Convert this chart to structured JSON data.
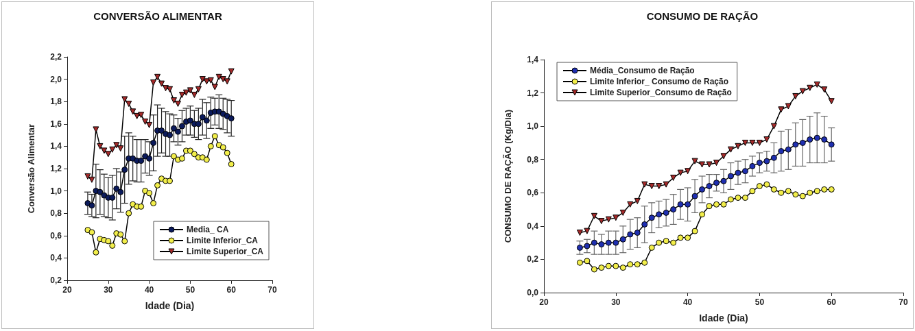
{
  "chart_data": [
    {
      "type": "line",
      "title": "CONVERSÃO ALIMENTAR",
      "xlabel": "Idade (Dia)",
      "ylabel": "Conversão Alimentar",
      "xlim": [
        20,
        70
      ],
      "xticks": [
        20,
        30,
        40,
        50,
        60,
        70
      ],
      "ylim": [
        0.2,
        2.2
      ],
      "yticks": [
        {
          "value": 0.2,
          "label": "0,2"
        },
        {
          "value": 0.4,
          "label": "0,4"
        },
        {
          "value": 0.6,
          "label": "0,6"
        },
        {
          "value": 0.8,
          "label": "0,8"
        },
        {
          "value": 1.0,
          "label": "1,0"
        },
        {
          "value": 1.2,
          "label": "1,2"
        },
        {
          "value": 1.4,
          "label": "1,4"
        },
        {
          "value": 1.6,
          "label": "1,6"
        },
        {
          "value": 1.8,
          "label": "1,8"
        },
        {
          "value": 2.0,
          "label": "2,0"
        },
        {
          "value": 2.2,
          "label": "2,2"
        }
      ],
      "grid": false,
      "legend": "bottom right",
      "x": [
        25,
        26,
        27,
        28,
        29,
        30,
        31,
        32,
        33,
        34,
        35,
        36,
        37,
        38,
        39,
        40,
        41,
        42,
        43,
        44,
        45,
        46,
        47,
        48,
        49,
        50,
        51,
        52,
        53,
        54,
        55,
        56,
        57,
        58,
        59,
        60
      ],
      "series": [
        {
          "name": "Media_ CA",
          "color": "#0b1a5c",
          "marker": "circle",
          "values": [
            0.89,
            0.87,
            1.0,
            0.99,
            0.96,
            0.94,
            0.94,
            1.02,
            0.99,
            1.19,
            1.29,
            1.29,
            1.27,
            1.27,
            1.31,
            1.29,
            1.43,
            1.54,
            1.54,
            1.51,
            1.5,
            1.56,
            1.53,
            1.58,
            1.62,
            1.63,
            1.6,
            1.6,
            1.66,
            1.63,
            1.7,
            1.71,
            1.71,
            1.69,
            1.67,
            1.65
          ],
          "errors": [
            0.1,
            0.1,
            0.24,
            0.2,
            0.19,
            0.18,
            0.2,
            0.18,
            0.18,
            0.3,
            0.23,
            0.2,
            0.19,
            0.19,
            0.15,
            0.15,
            0.25,
            0.23,
            0.2,
            0.2,
            0.19,
            0.12,
            0.12,
            0.14,
            0.12,
            0.13,
            0.12,
            0.14,
            0.16,
            0.16,
            0.14,
            0.12,
            0.15,
            0.14,
            0.15,
            0.16
          ]
        },
        {
          "name": "Limite Inferior_CA",
          "color": "#f2ee4a",
          "marker": "circle",
          "values": [
            0.65,
            0.63,
            0.45,
            0.57,
            0.56,
            0.55,
            0.51,
            0.62,
            0.61,
            0.55,
            0.8,
            0.88,
            0.86,
            0.86,
            1.0,
            0.98,
            0.89,
            1.05,
            1.11,
            1.09,
            1.09,
            1.31,
            1.28,
            1.29,
            1.36,
            1.36,
            1.33,
            1.3,
            1.3,
            1.28,
            1.4,
            1.49,
            1.41,
            1.39,
            1.34,
            1.24
          ]
        },
        {
          "name": "Limite Superior_CA",
          "color": "#a52a2a",
          "marker": "triangle",
          "values": [
            1.13,
            1.1,
            1.55,
            1.4,
            1.36,
            1.33,
            1.37,
            1.41,
            1.38,
            1.82,
            1.78,
            1.71,
            1.67,
            1.68,
            1.62,
            1.59,
            1.97,
            2.02,
            1.96,
            1.92,
            1.91,
            1.81,
            1.78,
            1.86,
            1.88,
            1.9,
            1.86,
            1.91,
            2.0,
            1.98,
            1.99,
            1.93,
            2.02,
            2.0,
            1.98,
            2.07
          ]
        }
      ]
    },
    {
      "type": "line",
      "title": "CONSUMO DE RAÇÃO",
      "xlabel": "Idade (Dia)",
      "ylabel": "CONSUMO DE RAÇÃO (Kg/Dia)",
      "xlim": [
        20,
        70
      ],
      "xticks": [
        20,
        30,
        40,
        50,
        60,
        70
      ],
      "ylim": [
        0,
        1.4
      ],
      "yticks": [
        {
          "value": 0,
          "label": "0,0"
        },
        {
          "value": 0.2,
          "label": "0,2"
        },
        {
          "value": 0.4,
          "label": "0,4"
        },
        {
          "value": 0.6,
          "label": "0,6"
        },
        {
          "value": 0.8,
          "label": "0,8"
        },
        {
          "value": 1.0,
          "label": "1,0"
        },
        {
          "value": 1.2,
          "label": "1,2"
        },
        {
          "value": 1.4,
          "label": "1,4"
        }
      ],
      "grid": false,
      "legend": "top left",
      "x": [
        25,
        26,
        27,
        28,
        29,
        30,
        31,
        32,
        33,
        34,
        35,
        36,
        37,
        38,
        39,
        40,
        41,
        42,
        43,
        44,
        45,
        46,
        47,
        48,
        49,
        50,
        51,
        52,
        53,
        54,
        55,
        56,
        57,
        58,
        59,
        60
      ],
      "series": [
        {
          "name": "Média_Consumo de Ração",
          "color": "#1f2fb0",
          "marker": "circle",
          "values": [
            0.27,
            0.28,
            0.3,
            0.29,
            0.3,
            0.3,
            0.32,
            0.35,
            0.36,
            0.41,
            0.45,
            0.47,
            0.48,
            0.5,
            0.53,
            0.53,
            0.58,
            0.62,
            0.64,
            0.66,
            0.67,
            0.7,
            0.72,
            0.73,
            0.76,
            0.78,
            0.79,
            0.81,
            0.85,
            0.86,
            0.89,
            0.9,
            0.92,
            0.93,
            0.92,
            0.89
          ],
          "errors": [
            0.04,
            0.04,
            0.07,
            0.06,
            0.07,
            0.07,
            0.08,
            0.09,
            0.09,
            0.11,
            0.09,
            0.08,
            0.08,
            0.09,
            0.09,
            0.1,
            0.1,
            0.08,
            0.07,
            0.05,
            0.07,
            0.08,
            0.07,
            0.07,
            0.06,
            0.06,
            0.06,
            0.09,
            0.12,
            0.12,
            0.13,
            0.14,
            0.14,
            0.15,
            0.14,
            0.1
          ]
        },
        {
          "name": "Limite Inferior_ Consumo de Ração",
          "color": "#f2ee4a",
          "marker": "circle",
          "values": [
            0.18,
            0.19,
            0.14,
            0.15,
            0.16,
            0.16,
            0.15,
            0.17,
            0.17,
            0.18,
            0.27,
            0.3,
            0.31,
            0.3,
            0.33,
            0.33,
            0.37,
            0.47,
            0.52,
            0.53,
            0.53,
            0.56,
            0.57,
            0.57,
            0.61,
            0.64,
            0.65,
            0.62,
            0.6,
            0.61,
            0.59,
            0.58,
            0.6,
            0.61,
            0.62,
            0.62
          ]
        },
        {
          "name": "Limite Superior_Consumo de Ração",
          "color": "#a52a2a",
          "marker": "triangle",
          "values": [
            0.36,
            0.37,
            0.46,
            0.43,
            0.44,
            0.45,
            0.48,
            0.53,
            0.55,
            0.65,
            0.64,
            0.64,
            0.65,
            0.69,
            0.72,
            0.73,
            0.79,
            0.77,
            0.77,
            0.78,
            0.82,
            0.86,
            0.88,
            0.9,
            0.9,
            0.9,
            0.92,
            1.0,
            1.1,
            1.12,
            1.18,
            1.21,
            1.23,
            1.25,
            1.22,
            1.15
          ]
        }
      ]
    }
  ]
}
